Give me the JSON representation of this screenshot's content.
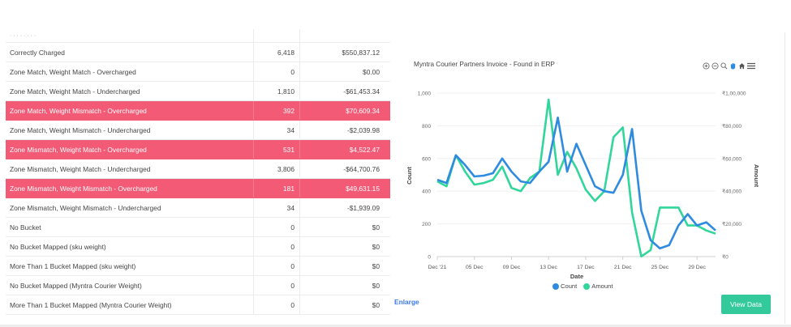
{
  "table": {
    "partial_row_label": "·  ·  ·  ·  ·  ·  ·  ·",
    "rows": [
      {
        "label": "Correctly Charged",
        "count": "6,418",
        "amount": "$550,837.12",
        "highlight": false
      },
      {
        "label": "Zone Match, Weight Match - Overcharged",
        "count": "0",
        "amount": "$0.00",
        "highlight": false
      },
      {
        "label": "Zone Match, Weight Match - Undercharged",
        "count": "1,810",
        "amount": "-$61,453.34",
        "highlight": false
      },
      {
        "label": "Zone Match, Weight Mismatch - Overcharged",
        "count": "392",
        "amount": "$70,609.34",
        "highlight": true
      },
      {
        "label": "Zone Match, Weight Mismatch - Undercharged",
        "count": "34",
        "amount": "-$2,039.98",
        "highlight": false
      },
      {
        "label": "Zone Mismatch, Weight Match - Overcharged",
        "count": "531",
        "amount": "$4,522.47",
        "highlight": true
      },
      {
        "label": "Zone Mismatch, Weight Match - Undercharged",
        "count": "3,806",
        "amount": "-$64,700.76",
        "highlight": false
      },
      {
        "label": "Zone Mismatch, Weight Mismatch - Overcharged",
        "count": "181",
        "amount": "$49,631.15",
        "highlight": true
      },
      {
        "label": "Zone Mismatch, Weight Mismatch - Undercharged",
        "count": "34",
        "amount": "-$1,939.09",
        "highlight": false
      },
      {
        "label": "No Bucket",
        "count": "0",
        "amount": "$0",
        "highlight": false
      },
      {
        "label": "No Bucket Mapped (sku weight)",
        "count": "0",
        "amount": "$0",
        "highlight": false
      },
      {
        "label": "More Than 1 Bucket Mapped (sku weight)",
        "count": "0",
        "amount": "$0",
        "highlight": false
      },
      {
        "label": "No Bucket Mapped (Myntra Courier Weight)",
        "count": "0",
        "amount": "$0",
        "highlight": false
      },
      {
        "label": "More Than 1 Bucket Mapped (Myntra Courier Weight)",
        "count": "0",
        "amount": "$0",
        "highlight": false
      }
    ]
  },
  "chart_card": {
    "enlarge_label": "Enlarge",
    "view_button_label": "View Data",
    "toolbar_icons": [
      "zoom-in-icon",
      "zoom-out-icon",
      "magnifier-icon",
      "pan-hand-icon",
      "home-icon",
      "menu-icon"
    ]
  },
  "colors": {
    "highlight": "#f25a76",
    "count_series": "#2f8be0",
    "amount_series": "#31d69b",
    "button": "#34c99a",
    "link": "#3b78e7"
  },
  "chart_data": {
    "type": "line",
    "title": "Myntra Courier Partners Invoice - Found in ERP",
    "xlabel": "Date",
    "ylabel": "Count",
    "y2label": "Amount",
    "x_tick_labels": [
      "Dec '21",
      "05 Dec",
      "09 Dec",
      "13 Dec",
      "17 Dec",
      "21 Dec",
      "25 Dec",
      "29 Dec"
    ],
    "y_ticks": [
      "0",
      "200",
      "400",
      "600",
      "800",
      "1,000"
    ],
    "y2_ticks": [
      "₹0",
      "₹20,000",
      "₹40,000",
      "₹60,000",
      "₹80,000",
      "₹1,00,000"
    ],
    "ylim": [
      0,
      1000
    ],
    "y2lim": [
      0,
      100000
    ],
    "x": [
      "2021-12-01",
      "2021-12-02",
      "2021-12-03",
      "2021-12-04",
      "2021-12-05",
      "2021-12-06",
      "2021-12-07",
      "2021-12-08",
      "2021-12-09",
      "2021-12-10",
      "2021-12-11",
      "2021-12-12",
      "2021-12-13",
      "2021-12-14",
      "2021-12-15",
      "2021-12-16",
      "2021-12-17",
      "2021-12-18",
      "2021-12-19",
      "2021-12-20",
      "2021-12-21",
      "2021-12-22",
      "2021-12-23",
      "2021-12-24",
      "2021-12-25",
      "2021-12-26",
      "2021-12-27",
      "2021-12-28",
      "2021-12-29",
      "2021-12-30",
      "2021-12-31"
    ],
    "series": [
      {
        "name": "Count",
        "axis": "left",
        "values": [
          470,
          450,
          620,
          560,
          490,
          495,
          510,
          600,
          520,
          460,
          450,
          520,
          580,
          850,
          520,
          690,
          560,
          430,
          400,
          390,
          500,
          780,
          280,
          100,
          50,
          70,
          190,
          260,
          190,
          210,
          160
        ]
      },
      {
        "name": "Amount",
        "axis": "right",
        "values": [
          46000,
          43000,
          62000,
          52000,
          44000,
          45000,
          47000,
          55000,
          42000,
          40000,
          48000,
          52000,
          96000,
          50000,
          64000,
          54000,
          41000,
          34000,
          40000,
          73000,
          79000,
          27000,
          120,
          4000,
          30000,
          30000,
          30000,
          19000,
          19000,
          16000,
          14000
        ]
      }
    ]
  }
}
